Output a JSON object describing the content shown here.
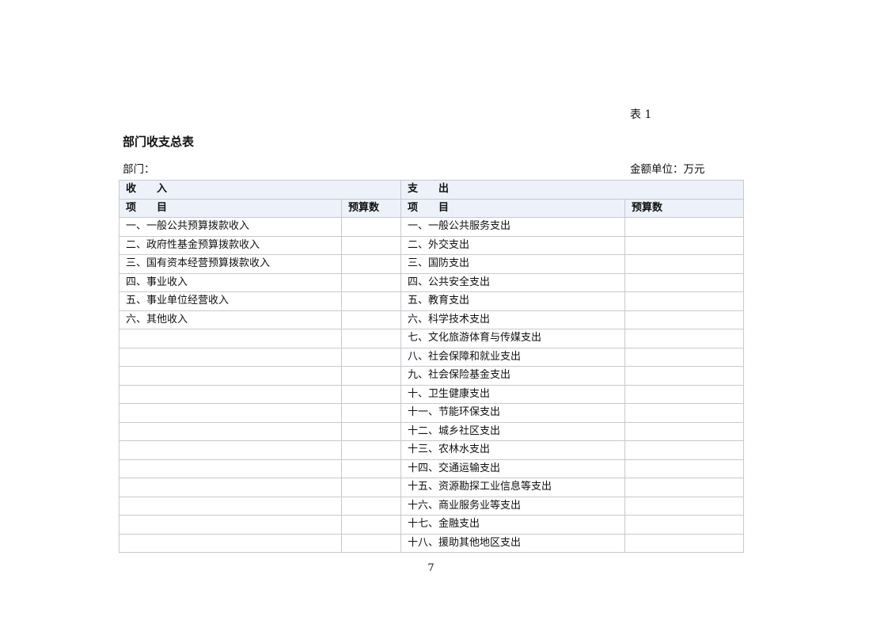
{
  "document": {
    "table_label": "表 1",
    "title": "部门收支总表",
    "department_label": "部门：",
    "unit_label": "金额单位：万元",
    "page_number": "7"
  },
  "budget_table": {
    "income": {
      "section_header": "收　　入",
      "item_header": "项　　目",
      "budget_header": "预算数",
      "rows": [
        "一、一般公共预算拨款收入",
        "二、政府性基金预算拨款收入",
        "三、国有资本经营预算拨款收入",
        "四、事业收入",
        "五、事业单位经营收入",
        "六、其他收入",
        "",
        "",
        "",
        "",
        "",
        "",
        "",
        "",
        "",
        "",
        "",
        ""
      ]
    },
    "expenditure": {
      "section_header": "支　　出",
      "item_header": "项　　目",
      "budget_header": "预算数",
      "rows": [
        "一、一般公共服务支出",
        "二、外交支出",
        "三、国防支出",
        "四、公共安全支出",
        "五、教育支出",
        "六、科学技术支出",
        "七、文化旅游体育与传媒支出",
        "八、社会保障和就业支出",
        "九、社会保险基金支出",
        "十、卫生健康支出",
        "十一、节能环保支出",
        "十二、城乡社区支出",
        "十三、农林水支出",
        "十四、交通运输支出",
        "十五、资源勘探工业信息等支出",
        "十六、商业服务业等支出",
        "十七、金融支出",
        "十八、援助其他地区支出"
      ]
    }
  },
  "colors": {
    "header_bg": "#edf1f9",
    "inner_border": "#c6c9ce",
    "outer_border": "#9fa3a9",
    "text": "#111111",
    "page_bg": "#ffffff"
  }
}
